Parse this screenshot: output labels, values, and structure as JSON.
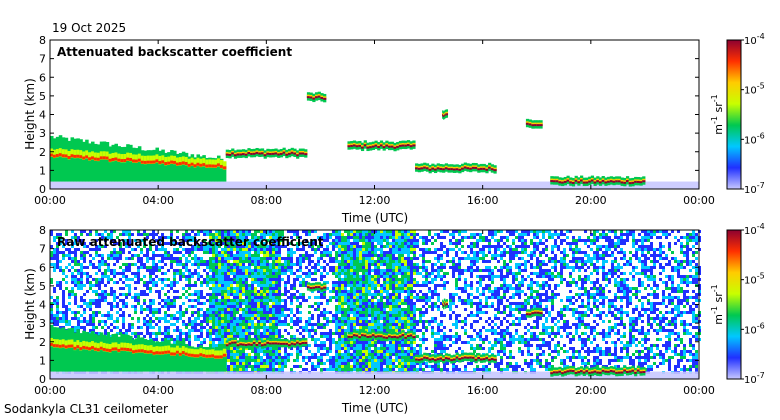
{
  "date": "19 Oct 2025",
  "footer": "Sodankyla CL31 ceilometer",
  "colorbar": {
    "unit_main": "m",
    "unit_exp1": "-1",
    "unit_sr": "sr",
    "unit_exp2": "-1",
    "tick_labels": [
      {
        "base": "10",
        "exp": "-4",
        "value": 0.0001
      },
      {
        "base": "10",
        "exp": "-5",
        "value": 1e-05
      },
      {
        "base": "10",
        "exp": "-6",
        "value": 1e-06
      },
      {
        "base": "10",
        "exp": "-7",
        "value": 1e-07
      }
    ],
    "colors": [
      "#c8c8ff",
      "#2030ff",
      "#00c8ff",
      "#00c850",
      "#c8ff00",
      "#ffcc00",
      "#ff3000",
      "#8c0030"
    ]
  },
  "chart_data": [
    {
      "type": "heatmap",
      "title": "Attenuated backscatter coefficient",
      "xlabel": "Time (UTC)",
      "ylabel": "Height (km)",
      "xlim": [
        0,
        24
      ],
      "ylim": [
        0,
        8
      ],
      "xticks": [
        "00:00",
        "04:00",
        "08:00",
        "12:00",
        "16:00",
        "20:00",
        "00:00"
      ],
      "yticks": [
        "0",
        "1",
        "2",
        "3",
        "4",
        "5",
        "6",
        "7",
        "8"
      ],
      "colorscale": {
        "min": 1e-07,
        "max": 0.0001,
        "log": true
      },
      "noise": false,
      "features": [
        {
          "label": "boundary-layer aerosol",
          "t0": 0.0,
          "t1": 6.5,
          "h_top": 2.8,
          "h_bottom": 0.8
        },
        {
          "label": "low cloud",
          "t0": 6.5,
          "t1": 9.5,
          "h": 1.9
        },
        {
          "label": "mid-level cloud",
          "t0": 9.5,
          "t1": 10.2,
          "h": 4.9
        },
        {
          "label": "cloud layer",
          "t0": 11.0,
          "t1": 13.5,
          "h": 2.3
        },
        {
          "label": "mid-level cloud",
          "t0": 14.5,
          "t1": 14.7,
          "h": 4.0
        },
        {
          "label": "cloud base",
          "t0": 13.5,
          "t1": 16.5,
          "h": 1.1
        },
        {
          "label": "cloud",
          "t0": 17.6,
          "t1": 18.2,
          "h": 3.5
        },
        {
          "label": "low cloud",
          "t0": 18.5,
          "t1": 22.0,
          "h": 0.4
        }
      ]
    },
    {
      "type": "heatmap",
      "title": "Raw attenuated backscatter coefficient",
      "xlabel": "Time (UTC)",
      "ylabel": "Height (km)",
      "xlim": [
        0,
        24
      ],
      "ylim": [
        0,
        8
      ],
      "xticks": [
        "00:00",
        "04:00",
        "08:00",
        "12:00",
        "16:00",
        "20:00",
        "00:00"
      ],
      "yticks": [
        "0",
        "1",
        "2",
        "3",
        "4",
        "5",
        "6",
        "7",
        "8"
      ],
      "colorscale": {
        "min": 1e-07,
        "max": 0.0001,
        "log": true
      },
      "noise": true,
      "noisy_periods": [
        {
          "t0": 5.8,
          "t1": 8.5
        },
        {
          "t0": 10.5,
          "t1": 13.5
        }
      ],
      "features": [
        {
          "label": "boundary-layer aerosol",
          "t0": 0.0,
          "t1": 6.5,
          "h_top": 2.8,
          "h_bottom": 0.8
        },
        {
          "label": "low cloud",
          "t0": 6.5,
          "t1": 9.5,
          "h": 1.9
        },
        {
          "label": "mid-level cloud",
          "t0": 9.5,
          "t1": 10.2,
          "h": 4.9
        },
        {
          "label": "cloud layer",
          "t0": 11.0,
          "t1": 13.5,
          "h": 2.3
        },
        {
          "label": "mid-level cloud",
          "t0": 14.5,
          "t1": 14.7,
          "h": 4.0
        },
        {
          "label": "cloud base",
          "t0": 13.5,
          "t1": 16.5,
          "h": 1.1
        },
        {
          "label": "cloud",
          "t0": 17.6,
          "t1": 18.2,
          "h": 3.5
        },
        {
          "label": "low cloud",
          "t0": 18.5,
          "t1": 22.0,
          "h": 0.4
        }
      ]
    }
  ]
}
